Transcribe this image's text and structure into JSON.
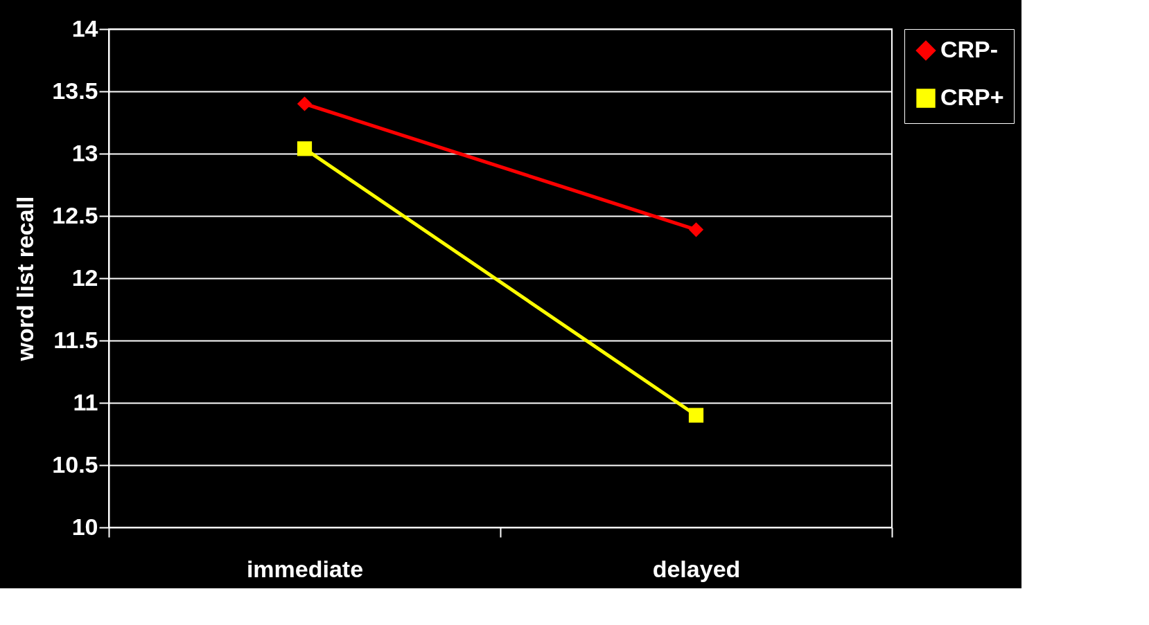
{
  "chart_data": {
    "type": "line",
    "ylabel": "word list recall",
    "categories": [
      "immediate",
      "delayed"
    ],
    "series": [
      {
        "name": "CRP-",
        "color": "#ff0000",
        "marker": "diamond",
        "values": [
          13.4,
          12.39
        ]
      },
      {
        "name": "CRP+",
        "color": "#ffff00",
        "marker": "square",
        "values": [
          13.04,
          10.9
        ]
      }
    ],
    "ylim": [
      10,
      14
    ],
    "yticks": [
      10,
      10.5,
      11,
      11.5,
      12,
      12.5,
      13,
      13.5,
      14
    ],
    "grid": "y",
    "legend": "right",
    "line_style": "solid"
  }
}
